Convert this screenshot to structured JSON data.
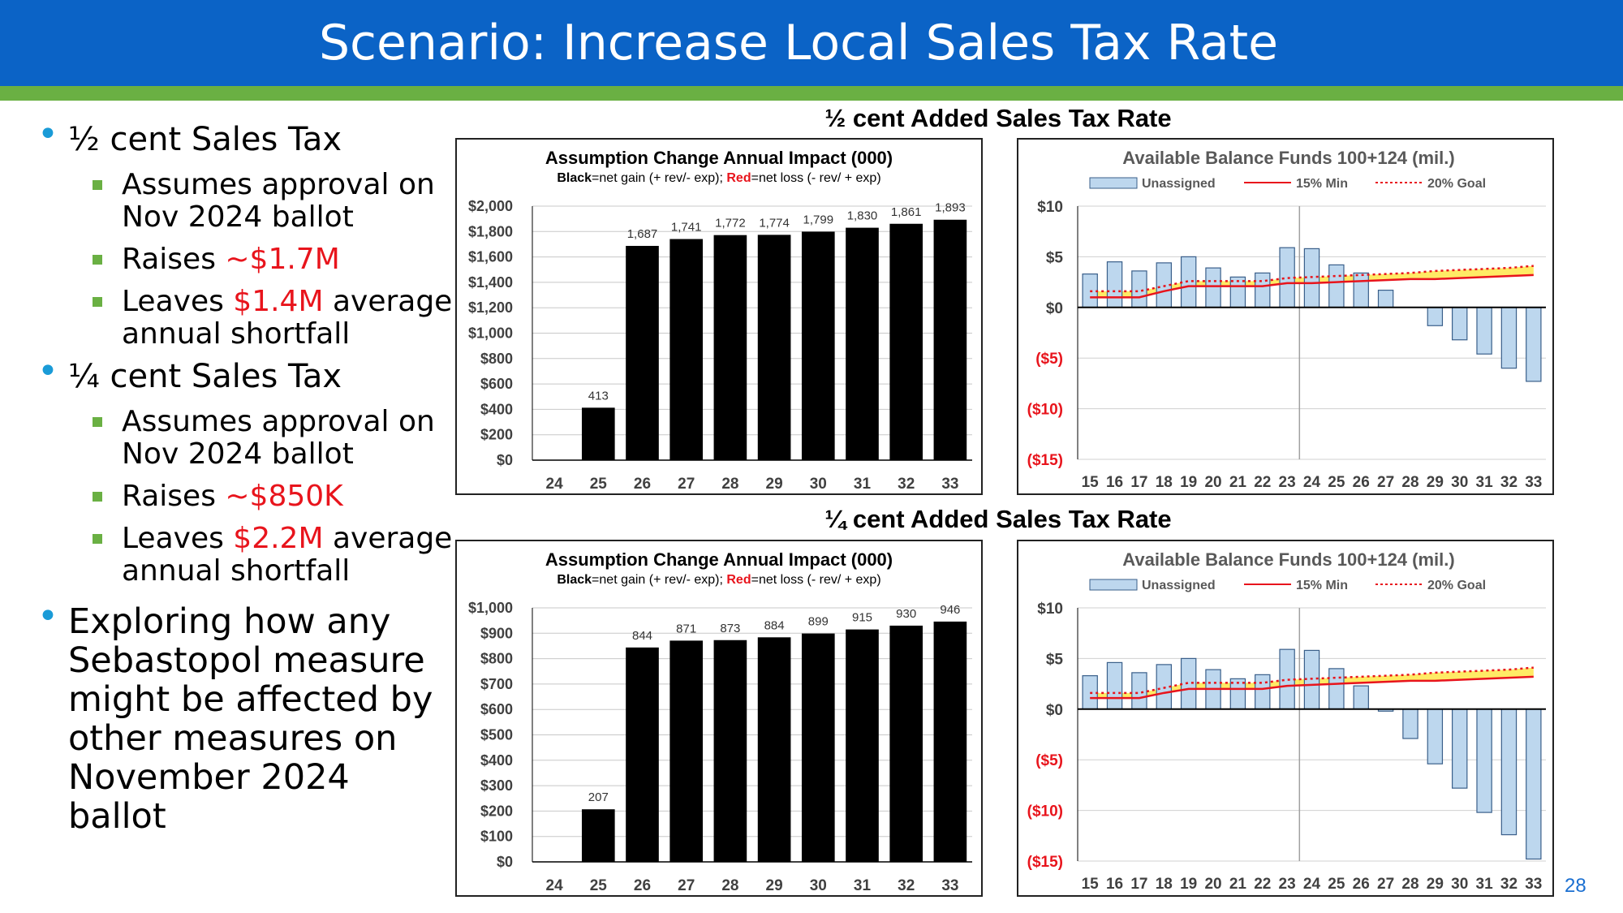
{
  "slide": {
    "title": "Scenario: Increase Local Sales Tax Rate",
    "page_number": "28",
    "colors": {
      "title_bar": "#0b63c6",
      "stripe": "#6ab043",
      "bullet": "#1a9bd7",
      "highlight": "#e8141c"
    }
  },
  "bullets": {
    "b1": {
      "text": "½ cent Sales Tax"
    },
    "b1_s1": "Assumes approval on Nov 2024 ballot",
    "b1_s2_pre": "Raises ",
    "b1_s2_val": "~$1.7M",
    "b1_s3_pre": "Leaves ",
    "b1_s3_val": "$1.4M",
    "b1_s3_post": " average annual shortfall",
    "b2": {
      "text": "¼ cent Sales Tax"
    },
    "b2_s1": "Assumes approval on Nov 2024 ballot",
    "b2_s2_pre": "Raises ",
    "b2_s2_val": "~$850K",
    "b2_s3_pre": "Leaves ",
    "b2_s3_val": "$2.2M",
    "b2_s3_post": " average annual shortfall",
    "b3": "Exploring how any Sebastopol measure might be affected by other measures on November 2024 ballot"
  },
  "sections": {
    "half": "½ cent Added Sales Tax Rate",
    "quarter": "¼ cent Added Sales Tax Rate"
  },
  "chart_data": [
    {
      "id": "half_impact",
      "type": "bar",
      "title": "Assumption Change Annual Impact (000)",
      "subtitle": {
        "black_label": "Black",
        "black_text": "=net gain (+ rev/- exp); ",
        "red_label": "Red",
        "red_text": "=net loss (- rev/ + exp)"
      },
      "categories": [
        "24",
        "25",
        "26",
        "27",
        "28",
        "29",
        "30",
        "31",
        "32",
        "33"
      ],
      "values": [
        0,
        413,
        1687,
        1741,
        1772,
        1774,
        1799,
        1830,
        1861,
        1893
      ],
      "data_labels": [
        "",
        "413",
        "1,687",
        "1,741",
        "1,772",
        "1,774",
        "1,799",
        "1,830",
        "1,861",
        "1,893"
      ],
      "ylim": [
        0,
        2000
      ],
      "yticks": [
        0,
        200,
        400,
        600,
        800,
        1000,
        1200,
        1400,
        1600,
        1800,
        2000
      ],
      "ytick_labels": [
        "$0",
        "$200",
        "$400",
        "$600",
        "$800",
        "$1,000",
        "$1,200",
        "$1,400",
        "$1,600",
        "$1,800",
        "$2,000"
      ],
      "bar_color": "#000000",
      "grid": true
    },
    {
      "id": "half_balance",
      "type": "bar",
      "title": "Available Balance Funds 100+124 (mil.)",
      "legend": [
        "Unassigned",
        "15% Min",
        "20% Goal"
      ],
      "legend_position": "top",
      "categories": [
        "15",
        "16",
        "17",
        "18",
        "19",
        "20",
        "21",
        "22",
        "23",
        "24",
        "25",
        "26",
        "27",
        "28",
        "29",
        "30",
        "31",
        "32",
        "33"
      ],
      "series": [
        {
          "name": "Unassigned",
          "type": "bar",
          "values": [
            3.3,
            4.5,
            3.6,
            4.4,
            5.0,
            3.9,
            3.0,
            3.4,
            5.9,
            5.8,
            4.2,
            3.4,
            1.7,
            0.0,
            -1.8,
            -3.2,
            -4.6,
            -6.0,
            -7.3
          ],
          "color": "#bdd7ee"
        },
        {
          "name": "15% Min",
          "type": "line",
          "values": [
            1.0,
            1.0,
            1.0,
            1.6,
            2.1,
            2.1,
            2.1,
            2.1,
            2.4,
            2.4,
            2.5,
            2.6,
            2.7,
            2.8,
            2.8,
            2.9,
            3.0,
            3.1,
            3.2
          ],
          "color": "#e8141c"
        },
        {
          "name": "20% Goal",
          "type": "line",
          "dashed": true,
          "values": [
            1.6,
            1.6,
            1.6,
            2.1,
            2.6,
            2.6,
            2.6,
            2.6,
            2.9,
            3.0,
            3.1,
            3.2,
            3.3,
            3.4,
            3.6,
            3.7,
            3.8,
            3.9,
            4.1
          ],
          "color": "#e8141c"
        }
      ],
      "ylim": [
        -15,
        10
      ],
      "yticks": [
        10,
        5,
        0,
        -5,
        -10,
        -15
      ],
      "ytick_labels": [
        "$10",
        "$5",
        "$0",
        "($5)",
        "($10)",
        "($15)"
      ],
      "grid": true
    },
    {
      "id": "quarter_impact",
      "type": "bar",
      "title": "Assumption Change Annual Impact (000)",
      "subtitle": {
        "black_label": "Black",
        "black_text": "=net gain (+ rev/- exp); ",
        "red_label": "Red",
        "red_text": "=net loss (- rev/ + exp)"
      },
      "categories": [
        "24",
        "25",
        "26",
        "27",
        "28",
        "29",
        "30",
        "31",
        "32",
        "33"
      ],
      "values": [
        0,
        207,
        844,
        871,
        873,
        884,
        899,
        915,
        930,
        946
      ],
      "data_labels": [
        "",
        "207",
        "844",
        "871",
        "873",
        "884",
        "899",
        "915",
        "930",
        "946"
      ],
      "ylim": [
        0,
        1000
      ],
      "yticks": [
        0,
        100,
        200,
        300,
        400,
        500,
        600,
        700,
        800,
        900,
        1000
      ],
      "ytick_labels": [
        "$0",
        "$100",
        "$200",
        "$300",
        "$400",
        "$500",
        "$600",
        "$700",
        "$800",
        "$900",
        "$1,000"
      ],
      "bar_color": "#000000",
      "grid": true
    },
    {
      "id": "quarter_balance",
      "type": "bar",
      "title": "Available Balance Funds 100+124 (mil.)",
      "legend": [
        "Unassigned",
        "15% Min",
        "20% Goal"
      ],
      "legend_position": "top",
      "categories": [
        "15",
        "16",
        "17",
        "18",
        "19",
        "20",
        "21",
        "22",
        "23",
        "24",
        "25",
        "26",
        "27",
        "28",
        "29",
        "30",
        "31",
        "32",
        "33"
      ],
      "series": [
        {
          "name": "Unassigned",
          "type": "bar",
          "values": [
            3.3,
            4.6,
            3.6,
            4.4,
            5.0,
            3.9,
            3.0,
            3.4,
            5.9,
            5.8,
            4.0,
            2.3,
            -0.2,
            -2.9,
            -5.4,
            -7.8,
            -10.2,
            -12.4,
            -14.8
          ],
          "color": "#bdd7ee"
        },
        {
          "name": "15% Min",
          "type": "line",
          "values": [
            1.1,
            1.1,
            1.1,
            1.6,
            2.0,
            2.0,
            2.0,
            2.0,
            2.3,
            2.4,
            2.5,
            2.6,
            2.7,
            2.8,
            2.8,
            2.9,
            3.0,
            3.1,
            3.2
          ],
          "color": "#e8141c"
        },
        {
          "name": "20% Goal",
          "type": "line",
          "dashed": true,
          "values": [
            1.6,
            1.6,
            1.6,
            2.1,
            2.6,
            2.6,
            2.6,
            2.6,
            2.9,
            3.0,
            3.1,
            3.2,
            3.3,
            3.4,
            3.6,
            3.7,
            3.8,
            3.9,
            4.1
          ],
          "color": "#e8141c"
        }
      ],
      "ylim": [
        -15,
        10
      ],
      "yticks": [
        10,
        5,
        0,
        -5,
        -10,
        -15
      ],
      "ytick_labels": [
        "$10",
        "$5",
        "$0",
        "($5)",
        "($10)",
        "($15)"
      ],
      "grid": true
    }
  ]
}
